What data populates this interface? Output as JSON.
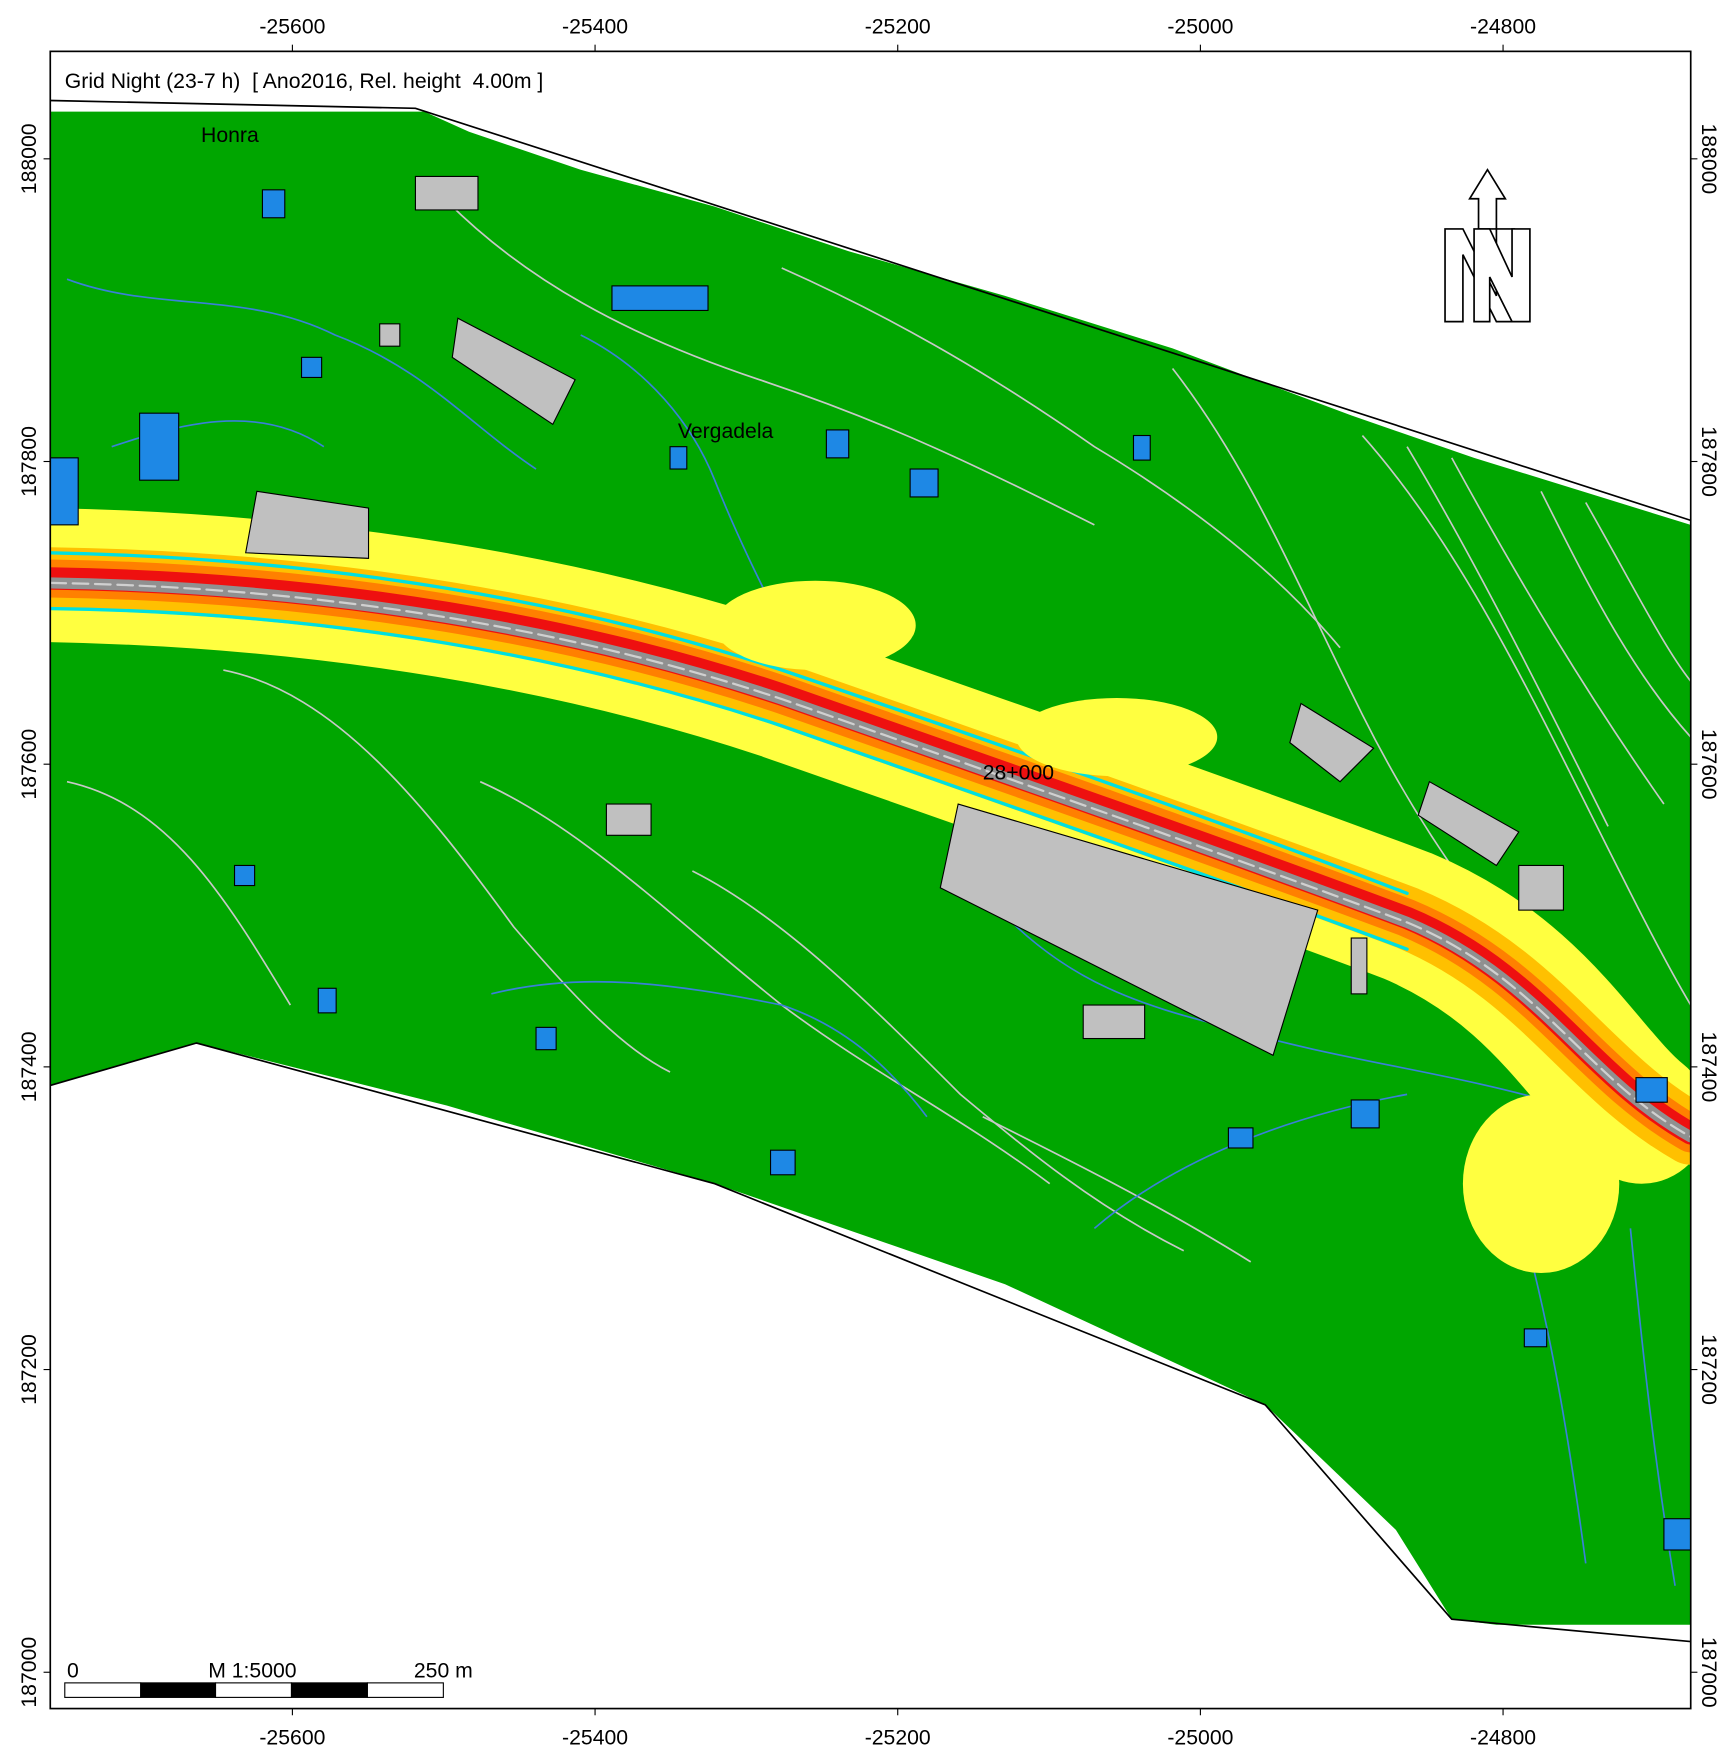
{
  "map": {
    "title": "Grid Night (23-7 h)  [ Ano2016, Rel. height  4.00m ]",
    "xlim": [
      -25760,
      -24676
    ],
    "ylim": [
      186976,
      188071
    ],
    "xticks": [
      -25600,
      -25400,
      -25200,
      -25000,
      -24800
    ],
    "yticks": [
      187000,
      187200,
      187400,
      187600,
      187800,
      188000
    ],
    "place_labels": [
      "Honra",
      "Vergadela",
      "28+000"
    ],
    "scale_bar": {
      "start": "0",
      "scale": "M 1:5000",
      "end": "250 m"
    }
  }
}
